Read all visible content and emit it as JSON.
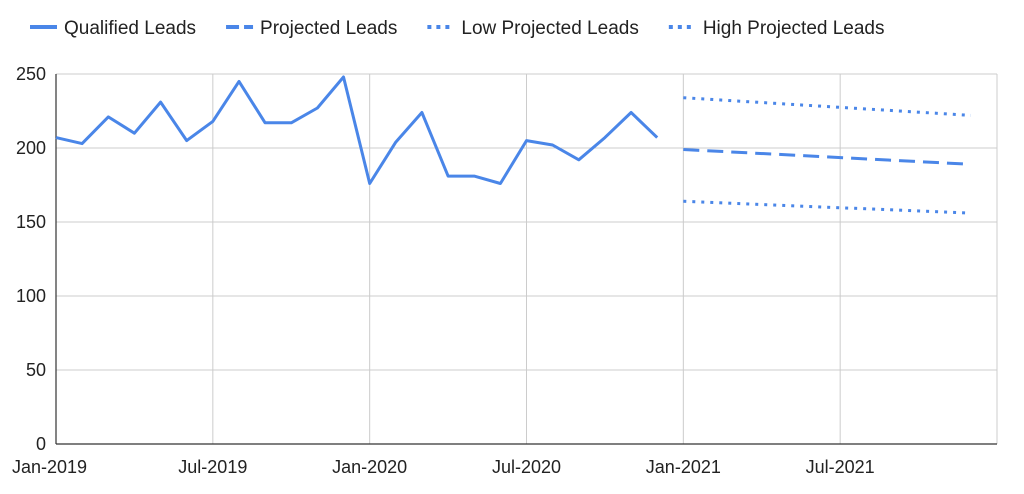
{
  "chart_data": {
    "type": "line",
    "x_type": "date",
    "xlim": [
      "2019-01",
      "2021-12"
    ],
    "ylim": [
      0,
      250
    ],
    "grid": true,
    "legend_position": "top",
    "x_ticks": [
      "Jan-2019",
      "Jul-2019",
      "Jan-2020",
      "Jul-2020",
      "Jan-2021",
      "Jul-2021"
    ],
    "y_ticks": [
      "0",
      "50",
      "100",
      "150",
      "200",
      "250"
    ],
    "series": [
      {
        "name": "Qualified Leads",
        "color": "#4a86e8",
        "style": "solid",
        "points": [
          [
            "2019-01",
            207
          ],
          [
            "2019-02",
            203
          ],
          [
            "2019-03",
            221
          ],
          [
            "2019-04",
            210
          ],
          [
            "2019-05",
            231
          ],
          [
            "2019-06",
            205
          ],
          [
            "2019-07",
            218
          ],
          [
            "2019-08",
            245
          ],
          [
            "2019-09",
            217
          ],
          [
            "2019-10",
            217
          ],
          [
            "2019-11",
            227
          ],
          [
            "2019-12",
            248
          ],
          [
            "2020-01",
            176
          ],
          [
            "2020-02",
            204
          ],
          [
            "2020-03",
            224
          ],
          [
            "2020-04",
            181
          ],
          [
            "2020-05",
            181
          ],
          [
            "2020-06",
            176
          ],
          [
            "2020-07",
            205
          ],
          [
            "2020-08",
            202
          ],
          [
            "2020-09",
            192
          ],
          [
            "2020-10",
            207
          ],
          [
            "2020-11",
            224
          ],
          [
            "2020-12",
            207
          ]
        ]
      },
      {
        "name": "Projected Leads",
        "color": "#4a86e8",
        "style": "dashed",
        "points": [
          [
            "2021-01",
            199
          ],
          [
            "2021-12",
            189
          ]
        ]
      },
      {
        "name": "Low Projected Leads",
        "color": "#4a86e8",
        "style": "dotted",
        "points": [
          [
            "2021-01",
            164
          ],
          [
            "2021-12",
            156
          ]
        ]
      },
      {
        "name": "High Projected Leads",
        "color": "#4a86e8",
        "style": "dotted",
        "points": [
          [
            "2021-01",
            234
          ],
          [
            "2021-12",
            222
          ]
        ]
      }
    ]
  }
}
